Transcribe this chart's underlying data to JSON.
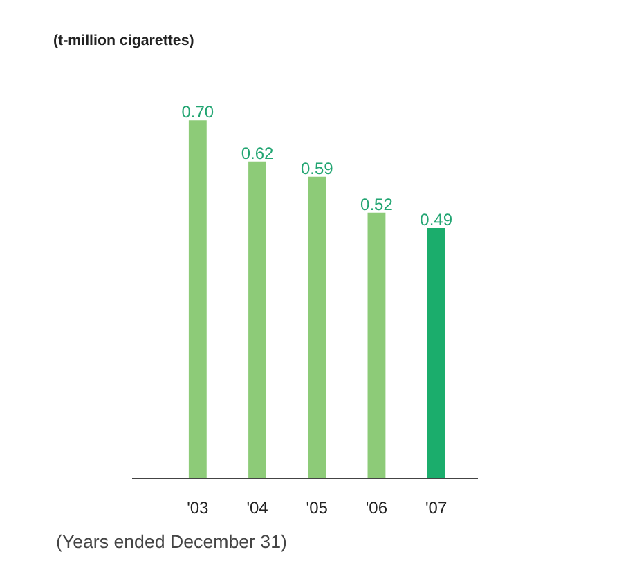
{
  "chart_data": {
    "type": "bar",
    "subtitle": "(t-million cigarettes)",
    "categories": [
      "'03",
      "'04",
      "'05",
      "'06",
      "'07"
    ],
    "values": [
      0.7,
      0.62,
      0.59,
      0.52,
      0.49
    ],
    "value_labels": [
      "0.70",
      "0.62",
      "0.59",
      "0.52",
      "0.49"
    ],
    "colors": [
      "#8dcb78",
      "#8dcb78",
      "#8dcb78",
      "#8dcb78",
      "#1bad6c"
    ],
    "annotations": [
      "(Years ended December 31)"
    ]
  }
}
